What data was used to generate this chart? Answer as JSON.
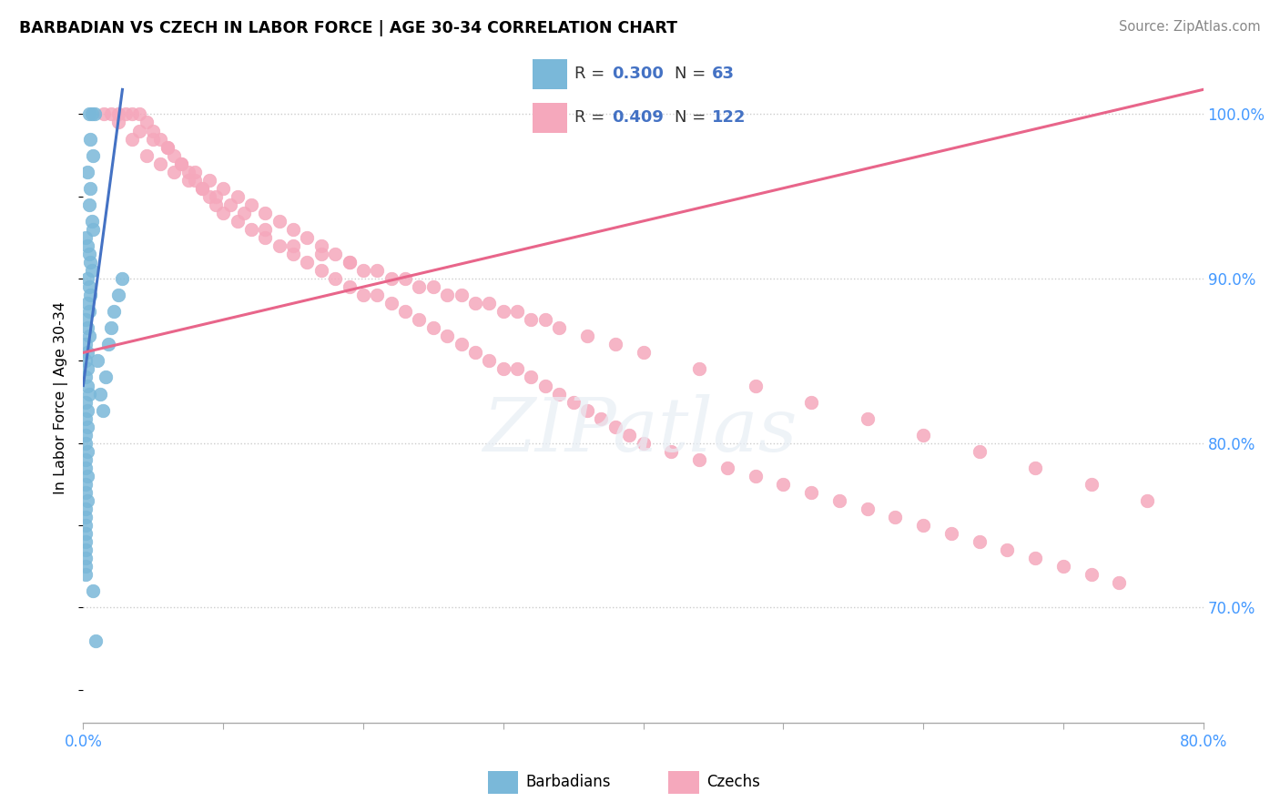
{
  "title": "BARBADIAN VS CZECH IN LABOR FORCE | AGE 30-34 CORRELATION CHART",
  "source": "Source: ZipAtlas.com",
  "ylabel": "In Labor Force | Age 30-34",
  "xlim": [
    0.0,
    80.0
  ],
  "ylim": [
    63.0,
    102.5
  ],
  "barbadian_color": "#7ab8d9",
  "czech_color": "#f5a8bc",
  "trend_blue": "#4472c4",
  "trend_pink": "#e8658a",
  "barbadian_R": 0.3,
  "barbadian_N": 63,
  "czech_R": 0.409,
  "czech_N": 122,
  "r_n_color": "#4472c4",
  "barbadian_x": [
    0.4,
    0.6,
    0.8,
    0.5,
    0.7,
    0.3,
    0.5,
    0.4,
    0.6,
    0.7,
    0.2,
    0.3,
    0.4,
    0.5,
    0.6,
    0.3,
    0.4,
    0.5,
    0.3,
    0.4,
    0.2,
    0.3,
    0.4,
    0.2,
    0.3,
    0.2,
    0.3,
    0.2,
    0.3,
    0.4,
    0.2,
    0.3,
    0.2,
    0.3,
    0.2,
    0.2,
    0.3,
    0.2,
    0.2,
    0.3,
    0.2,
    0.2,
    0.3,
    0.2,
    0.2,
    0.2,
    0.2,
    0.2,
    0.2,
    0.2,
    0.2,
    0.2,
    1.4,
    1.6,
    1.8,
    2.0,
    2.2,
    2.5,
    2.8,
    1.0,
    1.2,
    0.9,
    0.7
  ],
  "barbadian_y": [
    100.0,
    100.0,
    100.0,
    98.5,
    97.5,
    96.5,
    95.5,
    94.5,
    93.5,
    93.0,
    92.5,
    92.0,
    91.5,
    91.0,
    90.5,
    90.0,
    89.5,
    89.0,
    88.5,
    88.0,
    87.5,
    87.0,
    86.5,
    86.0,
    85.5,
    85.0,
    84.5,
    84.0,
    83.5,
    83.0,
    82.5,
    82.0,
    81.5,
    81.0,
    80.5,
    80.0,
    79.5,
    79.0,
    78.5,
    78.0,
    77.5,
    77.0,
    76.5,
    76.0,
    75.5,
    75.0,
    74.5,
    74.0,
    73.5,
    73.0,
    72.5,
    72.0,
    82.0,
    84.0,
    86.0,
    87.0,
    88.0,
    89.0,
    90.0,
    85.0,
    83.0,
    68.0,
    71.0
  ],
  "czech_x": [
    1.5,
    2.0,
    2.5,
    3.0,
    3.5,
    4.0,
    4.5,
    5.0,
    5.5,
    6.0,
    6.5,
    7.0,
    7.5,
    8.0,
    8.5,
    9.0,
    9.5,
    10.0,
    11.0,
    12.0,
    13.0,
    14.0,
    15.0,
    16.0,
    17.0,
    18.0,
    19.0,
    20.0,
    21.0,
    22.0,
    23.0,
    24.0,
    25.0,
    26.0,
    27.0,
    28.0,
    29.0,
    30.0,
    31.0,
    32.0,
    33.0,
    34.0,
    35.0,
    36.0,
    37.0,
    38.0,
    39.0,
    40.0,
    42.0,
    44.0,
    46.0,
    48.0,
    50.0,
    52.0,
    54.0,
    56.0,
    58.0,
    60.0,
    62.0,
    64.0,
    66.0,
    68.0,
    70.0,
    72.0,
    74.0,
    4.0,
    5.0,
    6.0,
    7.0,
    8.0,
    9.0,
    10.0,
    11.0,
    12.0,
    13.0,
    14.0,
    15.0,
    16.0,
    17.0,
    18.0,
    19.0,
    20.0,
    22.0,
    24.0,
    26.0,
    28.0,
    30.0,
    32.0,
    34.0,
    36.0,
    38.0,
    40.0,
    44.0,
    48.0,
    52.0,
    56.0,
    60.0,
    64.0,
    68.0,
    72.0,
    76.0,
    2.5,
    3.5,
    4.5,
    5.5,
    6.5,
    7.5,
    8.5,
    9.5,
    10.5,
    11.5,
    13.0,
    15.0,
    17.0,
    19.0,
    21.0,
    23.0,
    25.0,
    27.0,
    29.0,
    31.0,
    33.0
  ],
  "czech_y": [
    100.0,
    100.0,
    100.0,
    100.0,
    100.0,
    100.0,
    99.5,
    99.0,
    98.5,
    98.0,
    97.5,
    97.0,
    96.5,
    96.0,
    95.5,
    95.0,
    94.5,
    94.0,
    93.5,
    93.0,
    92.5,
    92.0,
    91.5,
    91.0,
    90.5,
    90.0,
    89.5,
    89.0,
    89.0,
    88.5,
    88.0,
    87.5,
    87.0,
    86.5,
    86.0,
    85.5,
    85.0,
    84.5,
    84.5,
    84.0,
    83.5,
    83.0,
    82.5,
    82.0,
    81.5,
    81.0,
    80.5,
    80.0,
    79.5,
    79.0,
    78.5,
    78.0,
    77.5,
    77.0,
    76.5,
    76.0,
    75.5,
    75.0,
    74.5,
    74.0,
    73.5,
    73.0,
    72.5,
    72.0,
    71.5,
    99.0,
    98.5,
    98.0,
    97.0,
    96.5,
    96.0,
    95.5,
    95.0,
    94.5,
    94.0,
    93.5,
    93.0,
    92.5,
    92.0,
    91.5,
    91.0,
    90.5,
    90.0,
    89.5,
    89.0,
    88.5,
    88.0,
    87.5,
    87.0,
    86.5,
    86.0,
    85.5,
    84.5,
    83.5,
    82.5,
    81.5,
    80.5,
    79.5,
    78.5,
    77.5,
    76.5,
    99.5,
    98.5,
    97.5,
    97.0,
    96.5,
    96.0,
    95.5,
    95.0,
    94.5,
    94.0,
    93.0,
    92.0,
    91.5,
    91.0,
    90.5,
    90.0,
    89.5,
    89.0,
    88.5,
    88.0,
    87.5
  ],
  "blue_trend_x": [
    0.0,
    2.8
  ],
  "blue_trend_y": [
    83.5,
    101.5
  ],
  "pink_trend_x": [
    0.0,
    80.0
  ],
  "pink_trend_y": [
    85.5,
    101.5
  ]
}
